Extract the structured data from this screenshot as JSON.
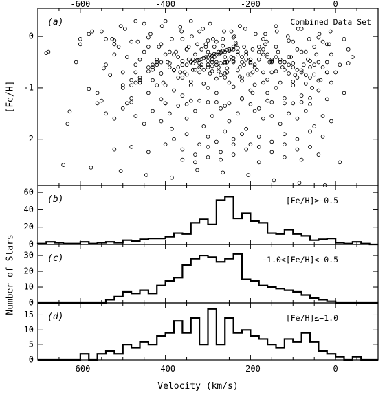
{
  "chart_data": [
    {
      "type": "scatter",
      "panel_label": "(a)",
      "annotation": "Combined Data Set",
      "ylabel": "[Fe/H]",
      "xlabel": "",
      "xlim": [
        -700,
        100
      ],
      "ylim": [
        -2.9,
        0.55
      ],
      "xticks": [
        -600,
        -400,
        -200,
        0
      ],
      "xtick_labels": [
        "-600",
        "-400",
        "-200",
        "0"
      ],
      "yticks": [
        0,
        -1,
        -2
      ],
      "ytick_labels": [
        "0",
        "-1",
        "-2"
      ],
      "marker": "open-circle",
      "x": [
        -680,
        -675,
        -630,
        -625,
        -610,
        -572,
        -580,
        -560,
        -545,
        -540,
        -520,
        -505,
        -490,
        -480,
        -470,
        -460,
        -450,
        -430,
        -415,
        -400,
        -385,
        -370,
        -365,
        -350,
        -340,
        -330,
        -320,
        -315,
        -305,
        -300,
        -295,
        -290,
        -285,
        -280,
        -275,
        -270,
        -265,
        -260,
        -255,
        -250,
        -245,
        -240,
        -235,
        -230,
        -225,
        -220,
        -210,
        -200,
        -195,
        -190,
        -180,
        -170,
        -165,
        -160,
        -150,
        -140,
        -130,
        -120,
        -110,
        -100,
        -90,
        -80,
        -70,
        -60,
        -55,
        -50,
        -40,
        -30,
        -20,
        -10,
        0,
        10,
        20,
        30,
        40,
        -540,
        -520,
        -500,
        -480,
        -460,
        -440,
        -420,
        -405,
        -390,
        -375,
        -360,
        -345,
        -330,
        -315,
        -300,
        -285,
        -270,
        -255,
        -240,
        -225,
        -210,
        -195,
        -180,
        -165,
        -150,
        -135,
        -120,
        -105,
        -90,
        -75,
        -60,
        -45,
        -30,
        -15,
        -530,
        -510,
        -490,
        -470,
        -450,
        -430,
        -410,
        -395,
        -380,
        -365,
        -350,
        -335,
        -320,
        -305,
        -290,
        -275,
        -260,
        -245,
        -230,
        -215,
        -200,
        -185,
        -170,
        -155,
        -140,
        -125,
        -110,
        -95,
        -80,
        -65,
        -50,
        -35,
        -20,
        -500,
        -480,
        -460,
        -440,
        -420,
        -400,
        -380,
        -360,
        -340,
        -320,
        -300,
        -280,
        -260,
        -240,
        -220,
        -200,
        -180,
        -160,
        -140,
        -120,
        -100,
        -80,
        -60,
        -40,
        -560,
        -540,
        -520,
        -500,
        -470,
        -450,
        -430,
        -410,
        -390,
        -370,
        -350,
        -330,
        -310,
        -290,
        -270,
        -250,
        -230,
        -210,
        -190,
        -170,
        -150,
        -130,
        -110,
        -90,
        -70,
        -50,
        -30,
        -10,
        -600,
        -580,
        -550,
        -525,
        -495,
        -465,
        -435,
        -408,
        -385,
        -362,
        -338,
        -312,
        -288,
        -262,
        -238,
        -212,
        -188,
        -162,
        -138,
        -112,
        -88,
        -62,
        -38,
        -12,
        -460,
        -430,
        -400,
        -370,
        -340,
        -310,
        -280,
        -250,
        -220,
        -190,
        -160,
        -130,
        -100,
        -70,
        -40,
        -10,
        -470,
        -440,
        -410,
        -380,
        -350,
        -320,
        -290,
        -260,
        -230,
        -200,
        -170,
        -140,
        -110,
        -80,
        -50,
        -20,
        -380,
        -350,
        -320,
        -300,
        -280,
        -260,
        -240,
        -220,
        -200,
        -180,
        -150,
        -120,
        -90,
        -60,
        -30,
        -520,
        -480,
        -440,
        -400,
        -360,
        -330,
        -300,
        -270,
        -240,
        -210,
        -180,
        -150,
        -120,
        -90,
        -60,
        -360,
        -330,
        -300,
        -270,
        -240,
        -180,
        -120,
        -80,
        -40,
        10,
        -420,
        -390,
        -360,
        -340,
        -320,
        -300,
        -280,
        -260,
        -240,
        -220,
        -200,
        -150,
        -120,
        -100,
        -60,
        -20,
        30,
        -400,
        -350,
        -300,
        -250,
        -200,
        -150,
        -100,
        -60,
        -600,
        -520,
        -440,
        -360,
        -300,
        -240,
        -170,
        -110,
        -40,
        20,
        -550,
        -480,
        -410,
        -340,
        -280,
        -220,
        -160,
        -80,
        -20,
        -640,
        -575,
        -505,
        -445,
        -385,
        -325,
        -265,
        -205,
        -145,
        -85,
        -25,
        -280,
        -300,
        -320,
        -340,
        -260,
        -240,
        -290,
        -310,
        -270,
        -250,
        -230,
        -330,
        -350,
        -295,
        -275,
        -255,
        -315,
        -335,
        -285,
        -265,
        -245,
        -305,
        -325,
        -300,
        -280,
        -260,
        -310,
        -290,
        -270,
        -250,
        -240,
        -360,
        -370,
        -380,
        -220,
        -210,
        -200,
        -190,
        -345,
        -325,
        -265,
        -235,
        -215,
        -195,
        -355,
        -335,
        -315,
        -295,
        -275,
        -255,
        -225,
        -205,
        -410,
        -420,
        -430,
        -440,
        -180,
        -170,
        -160,
        -150,
        -390,
        -400,
        -140,
        -130,
        -120,
        -110,
        -460,
        -470,
        -480,
        -100,
        -90,
        -500,
        -80,
        -70
      ],
      "y": [
        -0.32,
        -0.3,
        -1.7,
        -1.46,
        -0.5,
        0.1,
        -1.02,
        -1.1,
        -0.62,
        -0.55,
        -0.15,
        0.2,
        -1.3,
        -0.1,
        0.3,
        -0.8,
        0.25,
        -0.6,
        -0.2,
        0.3,
        -1.8,
        -0.4,
        0.18,
        -0.25,
        0.3,
        -0.35,
        0.1,
        -0.55,
        -0.15,
        -0.3,
        0.25,
        -0.45,
        -0.2,
        -0.1,
        -0.6,
        -0.3,
        -0.05,
        -0.4,
        -0.7,
        -0.25,
        0.1,
        -0.5,
        -0.15,
        -0.35,
        0.2,
        -0.8,
        -0.3,
        -0.45,
        -1.1,
        -0.6,
        -0.2,
        -0.9,
        0.05,
        -0.35,
        -0.7,
        0.2,
        -0.5,
        -1.2,
        -0.4,
        -0.1,
        -0.8,
        0.15,
        -0.3,
        -0.6,
        -1.0,
        -0.2,
        -0.5,
        -0.1,
        -0.7,
        -0.35,
        -0.7,
        -0.55,
        -1.1,
        -0.25,
        -0.4,
        -0.05,
        -0.35,
        -0.7,
        -0.85,
        -0.45,
        -0.2,
        -0.55,
        -0.9,
        -0.6,
        -0.3,
        -0.8,
        -0.45,
        -0.65,
        -0.25,
        -0.55,
        -0.4,
        -0.75,
        -0.5,
        -0.2,
        -0.6,
        -0.35,
        -0.7,
        -0.45,
        -0.15,
        -0.5,
        -0.3,
        -0.65,
        -0.4,
        -0.25,
        -0.55,
        -0.8,
        -0.35,
        -0.6,
        -0.15,
        -0.75,
        -0.2,
        -0.4,
        -0.55,
        -0.3,
        -0.65,
        -0.15,
        -0.5,
        -0.35,
        -0.7,
        -0.25,
        -0.45,
        -0.6,
        -0.2,
        -0.5,
        -0.35,
        -0.8,
        -0.4,
        -0.3,
        -0.55,
        -0.45,
        -0.65,
        -0.25,
        -0.5,
        -0.2,
        -0.6,
        -0.4,
        -0.75,
        -0.3,
        -0.45,
        -0.55,
        -0.85,
        -0.15,
        -1.0,
        -1.2,
        -0.9,
        -1.1,
        -0.95,
        -1.3,
        -1.05,
        -1.15,
        -0.95,
        -1.25,
        -1.0,
        -1.1,
        -1.35,
        -0.98,
        -1.2,
        -1.05,
        -1.4,
        -1.1,
        -1.0,
        -1.3,
        -0.95,
        -1.15,
        -1.2,
        -1.05,
        -1.3,
        -1.5,
        -1.6,
        -1.4,
        -1.55,
        -1.7,
        -1.45,
        -1.65,
        -1.5,
        -1.35,
        -1.6,
        -1.45,
        -1.75,
        -1.55,
        -1.4,
        -1.65,
        -1.5,
        -1.8,
        -1.45,
        -1.6,
        -1.55,
        -1.7,
        -1.5,
        -1.6,
        -1.45,
        -1.75,
        -1.55,
        -1.65,
        -0.15,
        0.05,
        0.1,
        -0.05,
        0.15,
        -0.1,
        0.05,
        0.2,
        -0.05,
        0.1,
        0.0,
        0.15,
        -0.05,
        0.1,
        0.0,
        0.15,
        0.05,
        -0.1,
        0.1,
        0.0,
        0.15,
        -0.05,
        0.05,
        0.1,
        -0.9,
        -0.85,
        -0.95,
        -0.8,
        -0.88,
        -0.92,
        -0.82,
        -0.9,
        -0.86,
        -0.94,
        -0.84,
        -0.9,
        -0.88,
        -0.92,
        -0.86,
        -0.9,
        -0.7,
        -0.68,
        -0.72,
        -0.66,
        -0.74,
        -0.7,
        -0.68,
        -0.72,
        -0.66,
        -0.74,
        -0.7,
        -0.68,
        -0.72,
        -0.66,
        -0.74,
        -0.7,
        -2.0,
        -1.9,
        -2.1,
        -1.95,
        -2.05,
        -1.85,
        -2.0,
        -1.9,
        -2.1,
        -1.95,
        -2.05,
        -1.9,
        -2.0,
        -1.85,
        -1.95,
        -2.2,
        -2.15,
        -2.25,
        -2.1,
        -2.2,
        -2.3,
        -2.15,
        -2.25,
        -2.1,
        -2.2,
        -2.15,
        -2.25,
        -2.1,
        -2.2,
        -2.15,
        -2.4,
        -2.45,
        -2.35,
        -2.4,
        -2.3,
        -2.45,
        -2.35,
        -2.4,
        -2.3,
        -2.45,
        -0.5,
        -0.52,
        -0.48,
        -0.5,
        -0.52,
        -0.48,
        -0.5,
        -0.52,
        -0.48,
        -0.5,
        -0.52,
        -0.48,
        -0.5,
        -0.52,
        -0.48,
        -0.5,
        -0.52,
        -1.3,
        -1.32,
        -1.28,
        -1.3,
        -1.32,
        -1.28,
        -1.3,
        -1.32,
        -0.05,
        -0.08,
        -0.02,
        -0.05,
        -0.08,
        -0.02,
        -0.05,
        -0.08,
        -0.02,
        -0.05,
        -1.25,
        -1.28,
        -1.22,
        -1.25,
        -1.28,
        -1.22,
        -1.25,
        -1.28,
        -1.22,
        -2.5,
        -2.55,
        -2.62,
        -2.7,
        -2.75,
        -2.6,
        -2.65,
        -2.7,
        -2.8,
        -2.85,
        -2.9,
        -0.35,
        -0.4,
        -0.45,
        -0.5,
        -0.3,
        -0.25,
        -0.38,
        -0.42,
        -0.32,
        -0.28,
        -0.22,
        -0.48,
        -0.55,
        -0.36,
        -0.3,
        -0.26,
        -0.44,
        -0.52,
        -0.34,
        -0.28,
        -0.24,
        -0.4,
        -0.46,
        -0.6,
        -0.55,
        -0.5,
        -0.65,
        -0.58,
        -0.52,
        -0.45,
        -0.42,
        -0.55,
        -0.6,
        -0.65,
        -0.4,
        -0.45,
        -0.5,
        -0.55,
        -0.2,
        -0.15,
        -0.18,
        -0.12,
        -0.2,
        -0.25,
        -0.7,
        -0.65,
        -0.6,
        -0.72,
        -0.68,
        -0.62,
        -0.78,
        -0.74,
        -0.5,
        -0.45,
        -0.55,
        -0.6,
        -0.3,
        -0.35,
        -0.4,
        -0.45,
        -0.3,
        -0.35,
        -0.4,
        -0.45,
        -0.5,
        -0.55,
        -0.85,
        -0.9,
        -0.95,
        -0.6,
        -0.65,
        -0.95,
        -0.7,
        -0.75
      ]
    },
    {
      "type": "histogram",
      "panel_label": "(b)",
      "annotation": "[Fe/H]≥−0.5",
      "ylabel": "",
      "xlabel": "",
      "xlim": [
        -700,
        100
      ],
      "ylim": [
        0,
        68
      ],
      "yticks": [
        0,
        20,
        40,
        60
      ],
      "ytick_labels": [
        "0",
        "20",
        "40",
        "60"
      ],
      "bin_edges": [
        -700,
        -680,
        -660,
        -640,
        -620,
        -600,
        -580,
        -560,
        -540,
        -520,
        -500,
        -480,
        -460,
        -440,
        -420,
        -400,
        -380,
        -360,
        -340,
        -320,
        -300,
        -280,
        -260,
        -240,
        -220,
        -200,
        -180,
        -160,
        -140,
        -120,
        -100,
        -80,
        -60,
        -40,
        -20,
        0,
        20,
        40,
        60,
        80,
        100
      ],
      "counts": [
        1,
        3,
        2,
        1,
        1,
        3,
        1,
        2,
        3,
        2,
        5,
        4,
        6,
        7,
        7,
        9,
        13,
        12,
        25,
        29,
        23,
        51,
        55,
        30,
        36,
        27,
        25,
        13,
        12,
        17,
        12,
        10,
        5,
        6,
        7,
        2,
        1,
        3,
        1,
        0
      ]
    },
    {
      "type": "histogram",
      "panel_label": "(c)",
      "annotation": "−1.0<[Fe/H]<−0.5",
      "ylabel": "",
      "xlabel": "",
      "xlim": [
        -700,
        100
      ],
      "ylim": [
        0,
        37
      ],
      "yticks": [
        0,
        10,
        20,
        30
      ],
      "ytick_labels": [
        "0",
        "10",
        "20",
        "30"
      ],
      "bin_edges": [
        -700,
        -680,
        -660,
        -640,
        -620,
        -600,
        -580,
        -560,
        -540,
        -520,
        -500,
        -480,
        -460,
        -440,
        -420,
        -400,
        -380,
        -360,
        -340,
        -320,
        -300,
        -280,
        -260,
        -240,
        -220,
        -200,
        -180,
        -160,
        -140,
        -120,
        -100,
        -80,
        -60,
        -40,
        -20,
        0,
        20,
        40,
        60,
        80,
        100
      ],
      "counts": [
        0,
        0,
        0,
        0,
        0,
        0,
        0,
        0,
        2,
        4,
        7,
        6,
        8,
        6,
        11,
        14,
        16,
        24,
        28,
        30,
        29,
        26,
        28,
        31,
        15,
        14,
        11,
        10,
        9,
        8,
        7,
        5,
        3,
        2,
        1,
        0,
        0,
        0,
        0,
        0
      ]
    },
    {
      "type": "histogram",
      "panel_label": "(d)",
      "annotation": "[Fe/H]≤−1.0",
      "ylabel": "",
      "xlabel": "Velocity (km/s)",
      "xlim": [
        -700,
        100
      ],
      "ylim": [
        0,
        19
      ],
      "xticks": [
        -600,
        -400,
        -200,
        0
      ],
      "xtick_labels": [
        "-600",
        "-400",
        "-200",
        "0"
      ],
      "yticks": [
        0,
        5,
        10,
        15
      ],
      "ytick_labels": [
        "0",
        "5",
        "10",
        "15"
      ],
      "bin_edges": [
        -700,
        -680,
        -660,
        -640,
        -620,
        -600,
        -580,
        -560,
        -540,
        -520,
        -500,
        -480,
        -460,
        -440,
        -420,
        -400,
        -380,
        -360,
        -340,
        -320,
        -300,
        -280,
        -260,
        -240,
        -220,
        -200,
        -180,
        -160,
        -140,
        -120,
        -100,
        -80,
        -60,
        -40,
        -20,
        0,
        20,
        40,
        60,
        80,
        100
      ],
      "counts": [
        0,
        0,
        0,
        0,
        0,
        2,
        0,
        2,
        3,
        2,
        5,
        4,
        6,
        5,
        8,
        9,
        13,
        9,
        14,
        5,
        17,
        5,
        14,
        9,
        10,
        8,
        7,
        5,
        4,
        7,
        6,
        9,
        6,
        3,
        2,
        1,
        0,
        1,
        0,
        0
      ]
    }
  ],
  "shared": {
    "ylabel": "Number of Stars",
    "xlabel": "Velocity (km/s)",
    "top_xtick_labels": [
      "-600",
      "-400",
      "-200",
      "0"
    ]
  }
}
